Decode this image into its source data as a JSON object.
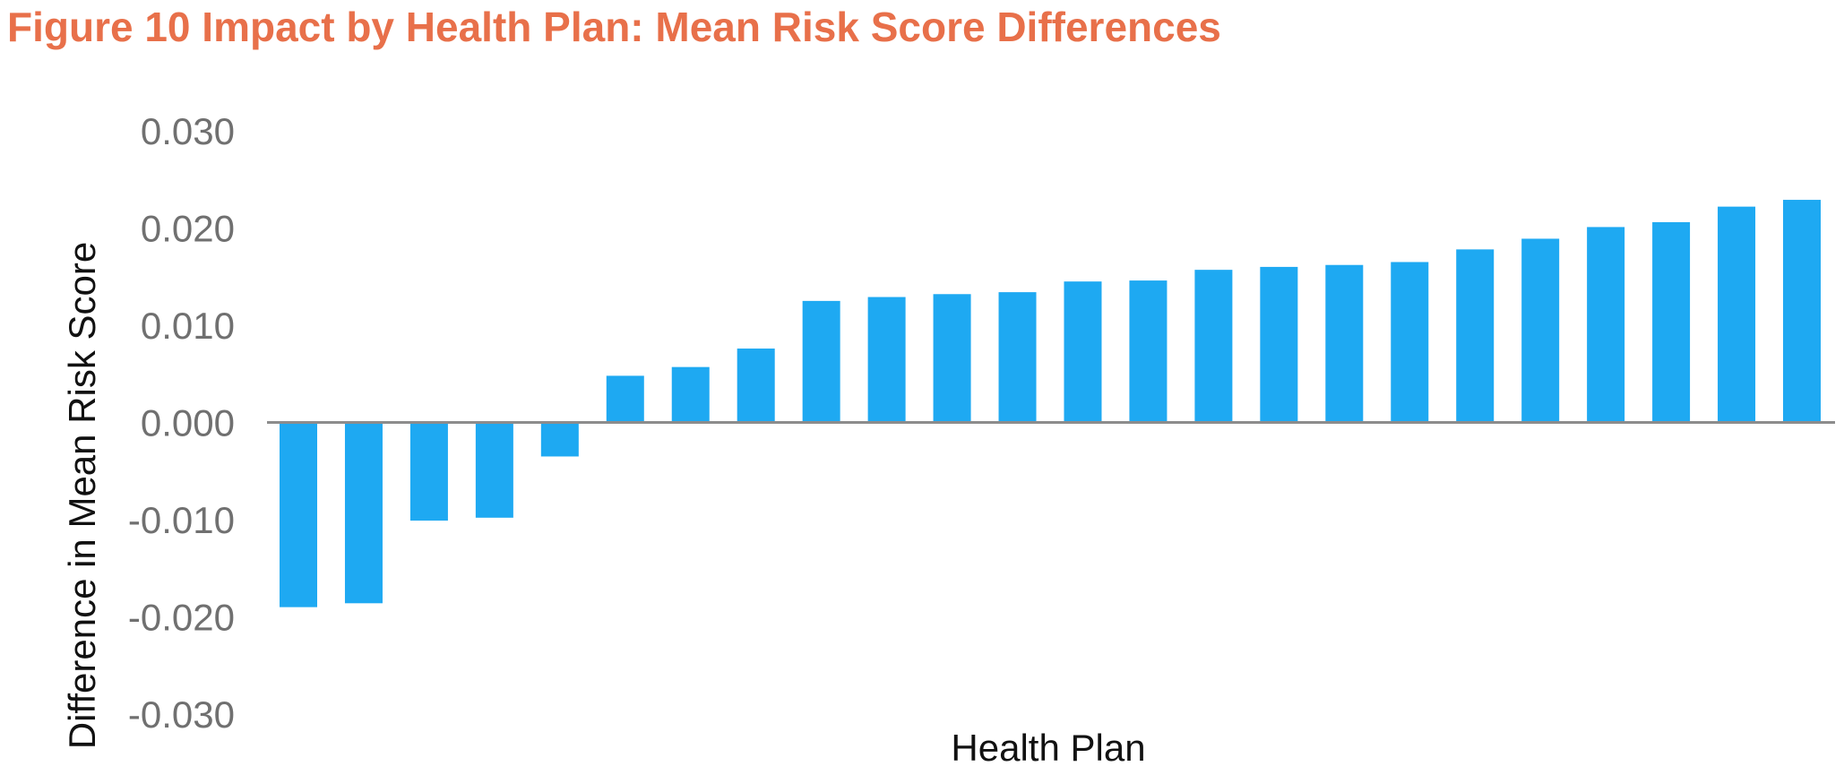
{
  "figure": {
    "title": "Figure 10 Impact by Health Plan: Mean Risk Score Differences",
    "title_color": "#E8704A"
  },
  "chart_data": {
    "type": "bar",
    "title": "Figure 10 Impact by Health Plan: Mean Risk Score Differences",
    "xlabel": "Health Plan",
    "ylabel": "Difference in Mean Risk Score",
    "ylim": [
      -0.03,
      0.03
    ],
    "yticks": [
      "0.030",
      "0.020",
      "0.010",
      "0.000",
      "-0.010",
      "-0.020",
      "-0.030"
    ],
    "ytick_values": [
      0.03,
      0.02,
      0.01,
      0.0,
      -0.01,
      -0.02,
      -0.03
    ],
    "grid": false,
    "bar_color": "#1EA9F2",
    "axis_color": "#8C8C8C",
    "values": [
      -0.019,
      -0.0186,
      -0.0101,
      -0.0098,
      -0.0035,
      0.0048,
      0.0057,
      0.0076,
      0.0125,
      0.0129,
      0.0132,
      0.0134,
      0.0145,
      0.0146,
      0.0157,
      0.016,
      0.0162,
      0.0165,
      0.0178,
      0.0189,
      0.0201,
      0.0206,
      0.0222,
      0.0229
    ]
  }
}
